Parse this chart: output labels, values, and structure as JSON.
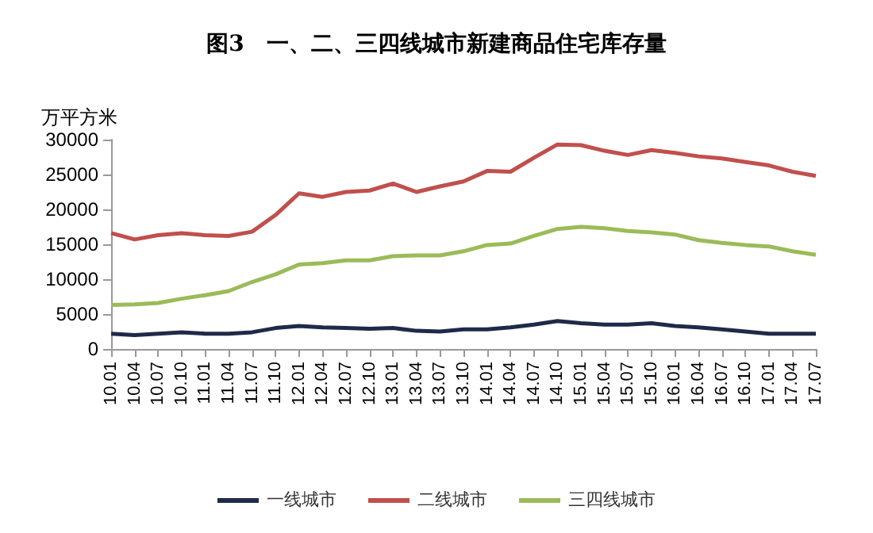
{
  "chart_data": {
    "type": "line",
    "title": "图3　一、二、三四线城市新建商品住宅库存量",
    "ylabel": "万平方米",
    "categories": [
      "10.01",
      "10.04",
      "10.07",
      "10.10",
      "11.01",
      "11.04",
      "11.07",
      "11.10",
      "12.01",
      "12.04",
      "12.07",
      "12.10",
      "13.01",
      "13.04",
      "13.07",
      "13.10",
      "14.01",
      "14.04",
      "14.07",
      "14.10",
      "15.01",
      "15.04",
      "15.07",
      "15.10",
      "16.01",
      "16.04",
      "16.07",
      "16.10",
      "17.01",
      "17.04",
      "17.07"
    ],
    "series": [
      {
        "name": "一线城市",
        "color": "#1f2a4a",
        "values": [
          2200,
          2000,
          2200,
          2400,
          2200,
          2200,
          2400,
          3000,
          3300,
          3100,
          3000,
          2900,
          3000,
          2600,
          2500,
          2800,
          2800,
          3100,
          3500,
          4000,
          3700,
          3500,
          3500,
          3700,
          3300,
          3100,
          2800,
          2500,
          2200,
          2200,
          2200
        ]
      },
      {
        "name": "二线城市",
        "color": "#c0504d",
        "values": [
          16600,
          15700,
          16300,
          16600,
          16300,
          16200,
          16800,
          19200,
          22300,
          21800,
          22500,
          22700,
          23700,
          22500,
          23300,
          24000,
          25500,
          25400,
          27400,
          29300,
          29200,
          28400,
          27800,
          28500,
          28100,
          27600,
          27300,
          26800,
          26300,
          25400,
          24800
        ]
      },
      {
        "name": "三四线城市",
        "color": "#9bbb59",
        "values": [
          6300,
          6400,
          6600,
          7200,
          7700,
          8300,
          9600,
          10700,
          12100,
          12300,
          12700,
          12700,
          13300,
          13400,
          13400,
          14000,
          14900,
          15100,
          16200,
          17200,
          17500,
          17300,
          16900,
          16700,
          16400,
          15600,
          15200,
          14900,
          14700,
          14000,
          13500
        ]
      }
    ],
    "ylim": [
      0,
      30000
    ],
    "yticks": [
      0,
      5000,
      10000,
      15000,
      20000,
      25000,
      30000
    ],
    "grid": false,
    "legend": "bottom",
    "marker": "none",
    "line_style": "solid"
  }
}
